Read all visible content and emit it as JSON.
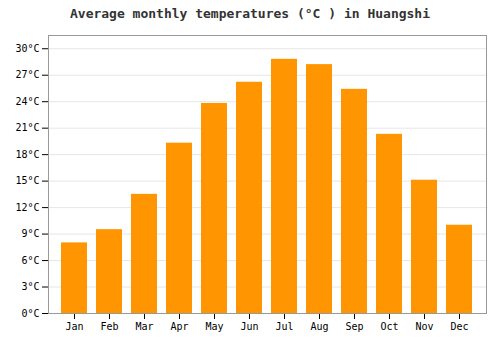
{
  "chart_data": {
    "type": "bar",
    "title": "Average monthly temperatures (°C ) in Huangshi",
    "categories": [
      "Jan",
      "Feb",
      "Mar",
      "Apr",
      "May",
      "Jun",
      "Jul",
      "Aug",
      "Sep",
      "Oct",
      "Nov",
      "Dec"
    ],
    "values": [
      8.0,
      9.5,
      13.5,
      19.3,
      23.8,
      26.2,
      28.8,
      28.2,
      25.4,
      20.3,
      15.1,
      10.0
    ],
    "color": "#FF9500",
    "ylim": [
      0,
      31.5
    ],
    "yticks": [
      {
        "value": 0,
        "label": "0°C"
      },
      {
        "value": 3,
        "label": "3°C"
      },
      {
        "value": 6,
        "label": "6°C"
      },
      {
        "value": 9,
        "label": "9°C"
      },
      {
        "value": 12,
        "label": "12°C"
      },
      {
        "value": 15,
        "label": "15°C"
      },
      {
        "value": 18,
        "label": "18°C"
      },
      {
        "value": 21,
        "label": "21°C"
      },
      {
        "value": 24,
        "label": "24°C"
      },
      {
        "value": 27,
        "label": "27°C"
      },
      {
        "value": 30,
        "label": "30°C"
      }
    ],
    "grid": true
  }
}
